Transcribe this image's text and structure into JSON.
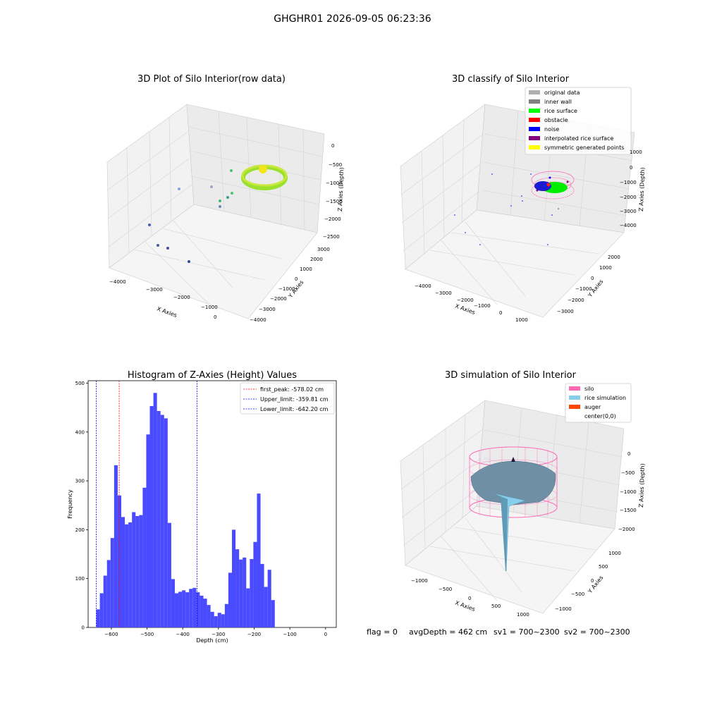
{
  "figure_title": "GHGHR01 2026-09-05 06:23:36",
  "status_line": {
    "flag": "flag = 0",
    "avg_depth": "avgDepth = 462 cm",
    "sv1": "sv1 = 700~2300",
    "sv2": "sv2 = 700~2300"
  },
  "colors": {
    "original_data": "#b0b0b0",
    "inner_wall": "#808080",
    "rice_surface": "#00ff00",
    "obstacle": "#ff0000",
    "noise": "#0000ff",
    "interpolated_rice_surface": "#800080",
    "symmetric_generated_points": "#ffff00",
    "silo": "#ff69b4",
    "rice_simulation": "#87ceeb",
    "auger": "#ff4500",
    "histogram_bars": "#4a4aff"
  },
  "chart_data": [
    {
      "type": "scatter",
      "projection": "3d",
      "title": "3D Plot of Silo Interior(row data)",
      "xlabel": "X Axies",
      "ylabel": "Y Axies",
      "zlabel": "Z Axies (Depth)",
      "x_ticks": [
        "−4000",
        "−3000",
        "−2000",
        "−1000",
        "0"
      ],
      "y_ticks": [
        "3000",
        "2000",
        "1000",
        "0",
        "−1000",
        "−2000",
        "−3000",
        "−4000"
      ],
      "z_ticks": [
        "0",
        "−500",
        "−1000",
        "−1500",
        "−2000",
        "−2500"
      ],
      "grid": true
    },
    {
      "type": "scatter",
      "projection": "3d",
      "title": "3D classify of Silo Interior",
      "xlabel": "X Axies",
      "ylabel": "Y Axies",
      "zlabel": "Z Axies (Depth)",
      "x_ticks": [
        "−4000",
        "−3000",
        "−2000",
        "−1000",
        "0",
        "1000"
      ],
      "y_ticks": [
        "2000",
        "1000",
        "0",
        "−1000",
        "−2000",
        "−3000"
      ],
      "z_ticks": [
        "1000",
        "0",
        "−1000",
        "−2000",
        "−3000",
        "−4000"
      ],
      "legend": [
        "original data",
        "inner wall",
        "rice surface",
        "obstacle",
        "noise",
        "interpolated rice surface",
        "symmetric generated points"
      ],
      "legend_position": "top-right",
      "grid": true
    },
    {
      "type": "bar",
      "title": "Histogram of Z-Axies (Height) Values",
      "xlabel": "Depth (cm)",
      "ylabel": "Frequency",
      "xlim": [
        -665,
        30
      ],
      "ylim": [
        0,
        505
      ],
      "x_ticks": [
        -600,
        -500,
        -400,
        -300,
        -200,
        -100,
        0
      ],
      "x_tick_labels": [
        "−600",
        "−500",
        "−400",
        "−300",
        "−200",
        "−100",
        "0"
      ],
      "y_ticks": [
        0,
        100,
        200,
        300,
        400,
        500
      ],
      "bin_start": -642.2,
      "bin_width": 10,
      "values": [
        37,
        70,
        106,
        138,
        183,
        332,
        270,
        226,
        211,
        215,
        236,
        228,
        230,
        286,
        395,
        453,
        480,
        443,
        435,
        428,
        214,
        99,
        70,
        73,
        76,
        72,
        79,
        81,
        72,
        65,
        59,
        46,
        32,
        23,
        30,
        27,
        48,
        112,
        200,
        160,
        139,
        143,
        80,
        140,
        175,
        274,
        130,
        83,
        118,
        56
      ],
      "vlines": [
        {
          "label": "first_peak: -578.02 cm",
          "x": -578.02,
          "color": "#ff0000"
        },
        {
          "label": "Upper_limit: -359.81 cm",
          "x": -359.81,
          "color": "#0000ff"
        },
        {
          "label": "Lower_limit: -642.20 cm",
          "x": -642.2,
          "color": "#0000ff"
        }
      ],
      "legend_position": "top-right",
      "grid": false
    },
    {
      "type": "surface",
      "projection": "3d",
      "title": "3D simulation of Silo Interior",
      "xlabel": "X Axies",
      "ylabel": "Y Axies",
      "zlabel": "Z Axies (Depth)",
      "x_ticks": [
        "−1000",
        "−500",
        "0",
        "500",
        "1000"
      ],
      "y_ticks": [
        "1000",
        "500",
        "0",
        "−500",
        "−1000"
      ],
      "z_ticks": [
        "0",
        "−500",
        "−1000",
        "−1500",
        "−2000"
      ],
      "legend": [
        "silo",
        "rice simulation",
        "auger",
        "center(0,0)"
      ],
      "legend_position": "top-right",
      "grid": true
    }
  ]
}
